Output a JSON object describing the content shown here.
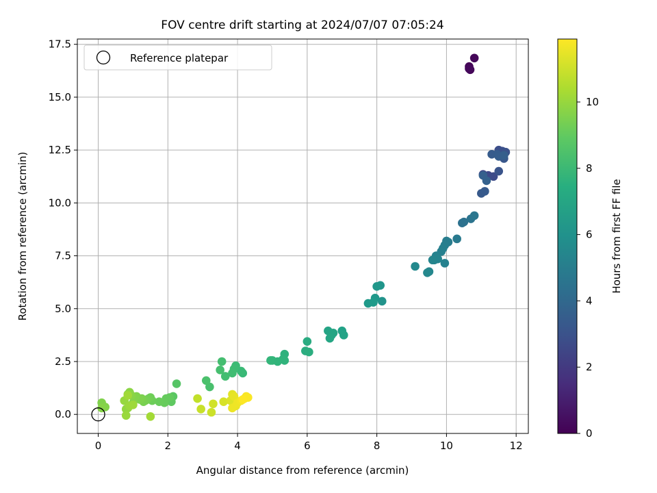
{
  "chart_data": {
    "type": "scatter",
    "title": "FOV centre drift starting at 2024/07/07 07:05:24",
    "xlabel": "Angular distance from reference (arcmin)",
    "ylabel": "Rotation from reference (arcmin)",
    "xlim": [
      -0.6,
      12.35
    ],
    "ylim": [
      -0.9,
      17.75
    ],
    "xticks": [
      0,
      2,
      4,
      6,
      8,
      10,
      12
    ],
    "xtick_labels": [
      "0",
      "2",
      "4",
      "6",
      "8",
      "10",
      "12"
    ],
    "yticks": [
      0.0,
      2.5,
      5.0,
      7.5,
      10.0,
      12.5,
      15.0,
      17.5
    ],
    "ytick_labels": [
      "0.0",
      "2.5",
      "5.0",
      "7.5",
      "10.0",
      "12.5",
      "15.0",
      "17.5"
    ],
    "grid": true,
    "legend": {
      "placement": "top-left",
      "entries": [
        "Reference platepar"
      ]
    },
    "colorbar": {
      "label": "Hours from first FF file",
      "range": [
        0,
        11.9
      ],
      "ticks": [
        0,
        2,
        4,
        6,
        8,
        10
      ],
      "tick_labels": [
        "0",
        "2",
        "4",
        "6",
        "8",
        "10"
      ],
      "colormap": "viridis"
    },
    "reference_point": {
      "x": 0,
      "y": 0
    },
    "series": [
      {
        "x": [
          10.65,
          10.68,
          10.8,
          10.65,
          11.05,
          11.2,
          11.35,
          11.5,
          11.6,
          11.7,
          11.5,
          11.65,
          11.0,
          11.1,
          11.3,
          11.45,
          11.5,
          11.65,
          11.05,
          11.15,
          10.45,
          10.5,
          10.7,
          10.8,
          10.3,
          10.05,
          10.0,
          9.95,
          9.9,
          9.85,
          9.95,
          9.7,
          9.65,
          9.75,
          9.6,
          9.5,
          9.45,
          9.1,
          8.15,
          8.1,
          8.0,
          7.95,
          7.75,
          7.9,
          7.0,
          7.05,
          6.7,
          6.6,
          6.75,
          6.65,
          6.0,
          5.95,
          6.05,
          5.35,
          5.3,
          5.35,
          5.15,
          5.0,
          4.95,
          4.15,
          4.1,
          3.95,
          3.9,
          3.85,
          3.65,
          3.55,
          3.5,
          3.2,
          3.1,
          2.25,
          2.15,
          2.1,
          2.05,
          1.95,
          1.9,
          1.75,
          1.55,
          1.5,
          1.45,
          1.4,
          1.35,
          1.3,
          1.25,
          1.2,
          1.1,
          1.05,
          1.0,
          0.95,
          0.9,
          0.85,
          0.85,
          0.8,
          0.75,
          0.8,
          0.9,
          1.0,
          0.85,
          1.5,
          0.1,
          0.2,
          0.1,
          2.85,
          2.95,
          3.25,
          3.3,
          3.6,
          3.8,
          3.85,
          3.9,
          3.95,
          3.85,
          4.0,
          4.1,
          4.2,
          4.25,
          4.3,
          4.15
        ],
        "y": [
          16.45,
          16.3,
          16.85,
          16.35,
          11.35,
          11.3,
          11.25,
          12.5,
          12.45,
          12.4,
          11.5,
          12.1,
          10.45,
          10.55,
          12.3,
          12.3,
          12.2,
          12.25,
          11.3,
          11.05,
          9.05,
          9.1,
          9.25,
          9.4,
          8.3,
          8.15,
          8.2,
          8.0,
          7.85,
          7.7,
          7.15,
          7.5,
          7.3,
          7.35,
          7.3,
          6.75,
          6.7,
          7.0,
          5.35,
          6.1,
          6.05,
          5.5,
          5.25,
          5.3,
          3.95,
          3.75,
          3.75,
          3.95,
          3.85,
          3.6,
          3.45,
          3.0,
          2.95,
          2.85,
          2.6,
          2.55,
          2.5,
          2.55,
          2.55,
          1.95,
          2.05,
          2.3,
          2.15,
          1.95,
          1.8,
          2.5,
          2.1,
          1.3,
          1.6,
          1.45,
          0.85,
          0.6,
          0.8,
          0.75,
          0.55,
          0.6,
          0.65,
          0.8,
          0.75,
          0.7,
          0.65,
          0.6,
          0.75,
          0.7,
          0.85,
          0.8,
          0.55,
          0.9,
          1.05,
          0.95,
          0.3,
          0.25,
          0.65,
          -0.05,
          0.4,
          0.45,
          0.9,
          -0.1,
          0.55,
          0.35,
          0.3,
          0.75,
          0.25,
          0.1,
          0.5,
          0.6,
          0.65,
          0.95,
          0.85,
          0.4,
          0.3,
          0.55,
          0.65,
          0.75,
          0.85,
          0.8,
          0.7
        ],
        "hours": [
          0.1,
          0.15,
          0.2,
          0.25,
          2.5,
          2.6,
          2.7,
          2.8,
          2.9,
          3.0,
          3.1,
          3.2,
          3.3,
          3.35,
          3.4,
          3.45,
          3.5,
          3.55,
          3.6,
          3.65,
          4.4,
          4.5,
          4.6,
          4.7,
          4.9,
          5.0,
          5.05,
          5.1,
          5.15,
          5.2,
          5.25,
          5.3,
          5.35,
          5.4,
          5.45,
          5.5,
          5.55,
          5.6,
          6.1,
          6.2,
          6.3,
          6.35,
          6.4,
          6.45,
          6.8,
          6.85,
          6.9,
          6.95,
          7.0,
          7.05,
          7.3,
          7.35,
          7.4,
          7.6,
          7.65,
          7.7,
          7.75,
          7.8,
          7.85,
          8.0,
          8.05,
          8.1,
          8.15,
          8.2,
          8.25,
          8.3,
          8.35,
          8.4,
          8.45,
          8.7,
          8.8,
          8.9,
          9.0,
          9.05,
          9.1,
          9.15,
          9.2,
          9.25,
          9.3,
          9.35,
          9.4,
          9.45,
          9.5,
          9.55,
          9.6,
          9.65,
          9.7,
          9.75,
          9.8,
          9.85,
          9.9,
          9.95,
          10.0,
          10.05,
          10.1,
          10.15,
          10.2,
          10.25,
          9.6,
          9.65,
          9.7,
          10.8,
          10.9,
          11.0,
          11.1,
          11.2,
          11.3,
          11.4,
          11.5,
          11.55,
          11.6,
          11.65,
          11.7,
          11.75,
          11.8,
          11.85,
          11.9
        ]
      }
    ]
  }
}
